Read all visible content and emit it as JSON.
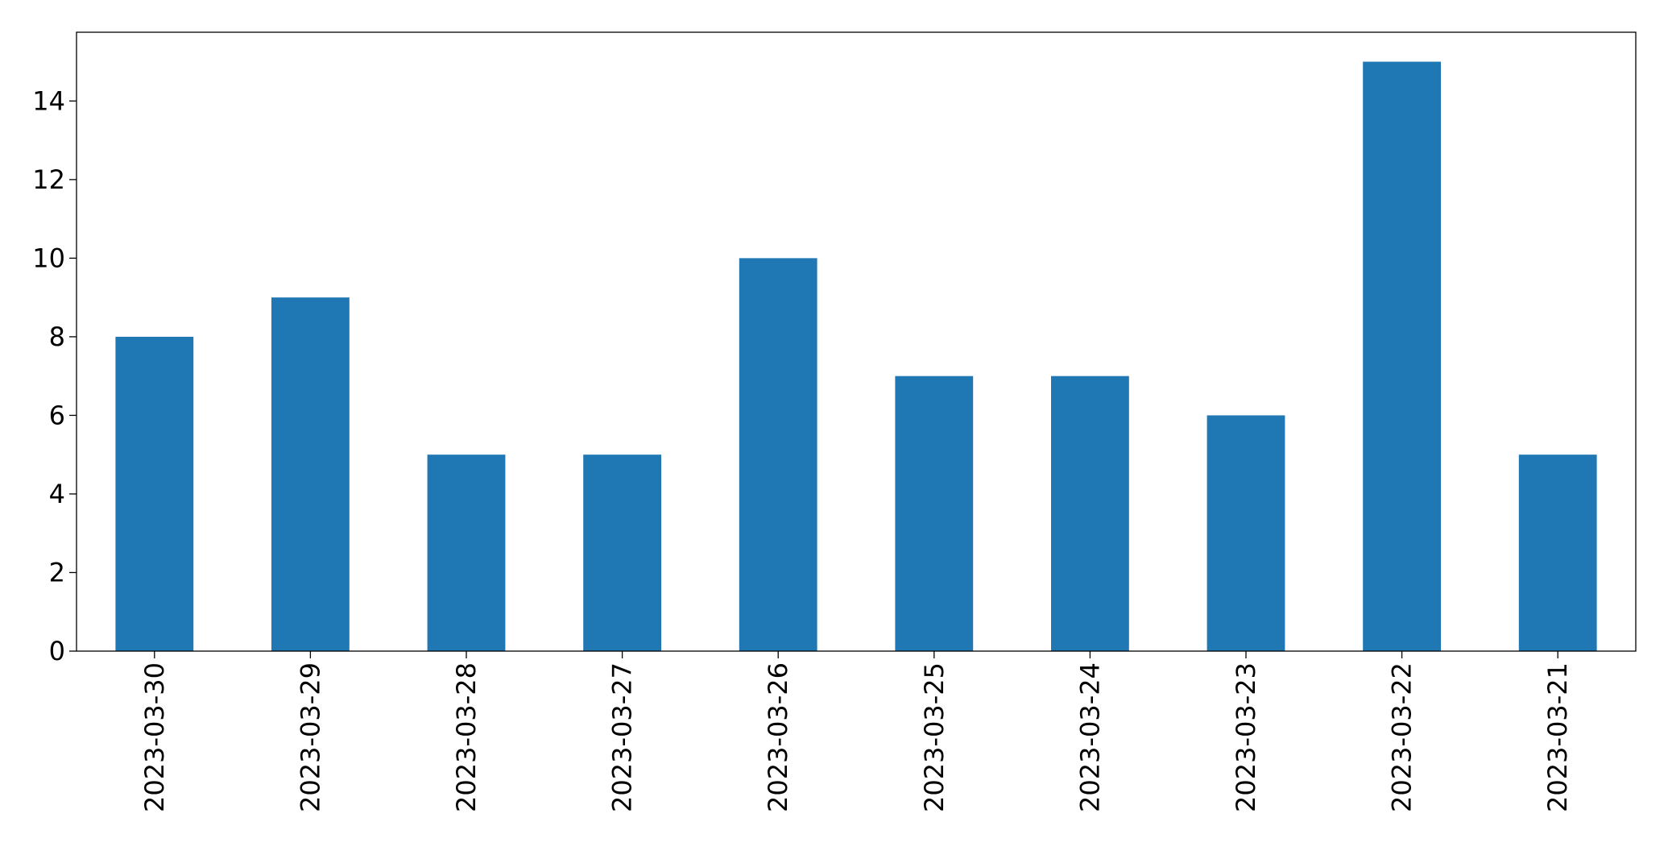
{
  "chart_data": {
    "type": "bar",
    "categories": [
      "2023-03-30",
      "2023-03-29",
      "2023-03-28",
      "2023-03-27",
      "2023-03-26",
      "2023-03-25",
      "2023-03-24",
      "2023-03-23",
      "2023-03-22",
      "2023-03-21"
    ],
    "values": [
      8,
      9,
      5,
      5,
      10,
      7,
      7,
      6,
      15,
      5
    ],
    "color": "#1f77b4",
    "ylim": [
      0,
      15.75
    ],
    "yticks": [
      0,
      2,
      4,
      6,
      8,
      10,
      12,
      14
    ],
    "grid": false
  }
}
